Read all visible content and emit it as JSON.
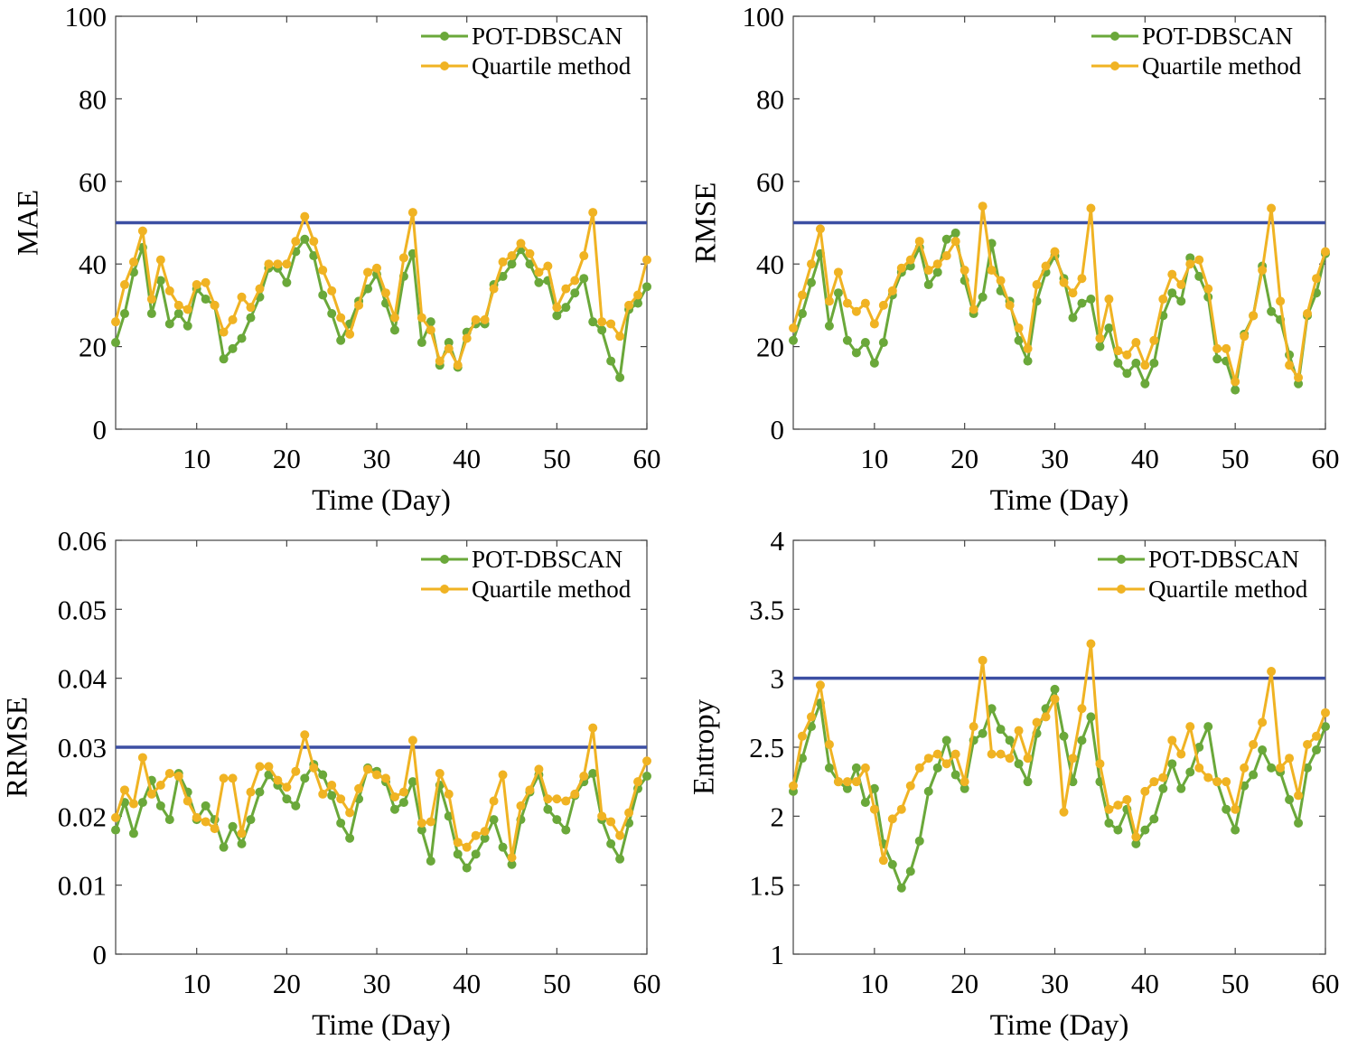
{
  "chart_data": [
    {
      "type": "line",
      "id": "mae",
      "ylabel": "MAE",
      "xlabel": "Time (Day)",
      "xlim": [
        1,
        60
      ],
      "ylim": [
        0,
        100
      ],
      "xticks": [
        10,
        20,
        30,
        40,
        50,
        60
      ],
      "yticks": [
        0,
        20,
        40,
        60,
        80,
        100
      ],
      "ytick_labels": [
        "0",
        "20",
        "40",
        "60",
        "80",
        "100"
      ],
      "threshold": 50,
      "legend": "top-right",
      "x": [
        1,
        2,
        3,
        4,
        5,
        6,
        7,
        8,
        9,
        10,
        11,
        12,
        13,
        14,
        15,
        16,
        17,
        18,
        19,
        20,
        21,
        22,
        23,
        24,
        25,
        26,
        27,
        28,
        29,
        30,
        31,
        32,
        33,
        34,
        35,
        36,
        37,
        38,
        39,
        40,
        41,
        42,
        43,
        44,
        45,
        46,
        47,
        48,
        49,
        50,
        51,
        52,
        53,
        54,
        55,
        56,
        57,
        58,
        59,
        60
      ],
      "series": [
        {
          "name": "POT-DBSCAN",
          "color": "#6aa83a",
          "values": [
            21,
            28,
            38,
            44,
            28,
            36,
            25.5,
            28,
            25,
            34,
            31.5,
            30,
            17,
            19.5,
            22,
            27,
            32,
            39,
            39,
            35.5,
            43,
            46,
            42,
            32.5,
            28,
            21.5,
            25.5,
            31,
            34,
            37.5,
            30.5,
            24,
            37,
            42.5,
            21,
            26,
            15.5,
            21,
            15,
            23.5,
            25.5,
            25.5,
            35,
            37,
            40,
            43.5,
            40,
            35.5,
            36,
            27.5,
            29.5,
            33,
            36.5,
            26,
            24,
            16.5,
            12.5,
            29,
            30.5,
            34.5
          ]
        },
        {
          "name": "Quartile method",
          "color": "#f0b323",
          "values": [
            26,
            35,
            40.5,
            48,
            31.5,
            41,
            33.5,
            30,
            29,
            35,
            35.5,
            30,
            23.5,
            26.5,
            32,
            29.5,
            34,
            40,
            40,
            40,
            45.5,
            51.5,
            45.5,
            38.5,
            33.5,
            27,
            23,
            30,
            38,
            39,
            33,
            27,
            41.5,
            52.5,
            27,
            24,
            16.5,
            19.5,
            15.5,
            22,
            26.5,
            26.5,
            34,
            40.5,
            42,
            45,
            42.5,
            38,
            39.5,
            29.5,
            34,
            36,
            42,
            52.5,
            26,
            25.5,
            22.5,
            30,
            32.5,
            41
          ]
        }
      ]
    },
    {
      "type": "line",
      "id": "rmse",
      "ylabel": "RMSE",
      "xlabel": "Time (Day)",
      "xlim": [
        1,
        60
      ],
      "ylim": [
        0,
        100
      ],
      "xticks": [
        10,
        20,
        30,
        40,
        50,
        60
      ],
      "yticks": [
        0,
        20,
        40,
        60,
        80,
        100
      ],
      "ytick_labels": [
        "0",
        "20",
        "40",
        "60",
        "80",
        "100"
      ],
      "threshold": 50,
      "legend": "top-right",
      "x": [
        1,
        2,
        3,
        4,
        5,
        6,
        7,
        8,
        9,
        10,
        11,
        12,
        13,
        14,
        15,
        16,
        17,
        18,
        19,
        20,
        21,
        22,
        23,
        24,
        25,
        26,
        27,
        28,
        29,
        30,
        31,
        32,
        33,
        34,
        35,
        36,
        37,
        38,
        39,
        40,
        41,
        42,
        43,
        44,
        45,
        46,
        47,
        48,
        49,
        50,
        51,
        52,
        53,
        54,
        55,
        56,
        57,
        58,
        59,
        60
      ],
      "series": [
        {
          "name": "POT-DBSCAN",
          "color": "#6aa83a",
          "values": [
            21.5,
            28,
            35.5,
            42.5,
            25,
            33,
            21.5,
            18.5,
            21,
            16,
            21,
            32.5,
            38,
            39.5,
            44,
            35,
            38,
            46,
            47.5,
            36,
            28,
            32,
            45,
            33.5,
            31,
            21.5,
            16.5,
            31,
            38,
            42,
            36.5,
            27,
            30.5,
            31.5,
            20,
            24.5,
            16,
            13.5,
            16,
            11,
            16,
            27.5,
            33,
            31,
            41.5,
            37,
            32,
            17,
            16.5,
            9.5,
            23,
            27.5,
            39.5,
            28.5,
            26.5,
            18,
            11,
            27.5,
            33,
            42.5
          ]
        },
        {
          "name": "Quartile method",
          "color": "#f0b323",
          "values": [
            24.5,
            32.5,
            40,
            48.5,
            31,
            38,
            30.5,
            28.5,
            30.5,
            25.5,
            30,
            33.5,
            39,
            41,
            45.5,
            38.5,
            40,
            42,
            45.5,
            38.5,
            29,
            54,
            38.5,
            36,
            30,
            24.5,
            19.5,
            35,
            39.5,
            43,
            35.5,
            33,
            36.5,
            53.5,
            22,
            31.5,
            19,
            18,
            21,
            15.5,
            21.5,
            31.5,
            37.5,
            35,
            40,
            41,
            34,
            19.5,
            19.5,
            11.5,
            22.5,
            27.5,
            38.5,
            53.5,
            31,
            15.5,
            12.5,
            28,
            36.5,
            43
          ]
        }
      ]
    },
    {
      "type": "line",
      "id": "rrmse",
      "ylabel": "RRMSE",
      "xlabel": "Time (Day)",
      "xlim": [
        1,
        60
      ],
      "ylim": [
        0,
        0.06
      ],
      "xticks": [
        10,
        20,
        30,
        40,
        50,
        60
      ],
      "yticks": [
        0,
        0.01,
        0.02,
        0.03,
        0.04,
        0.05,
        0.06
      ],
      "ytick_labels": [
        "0",
        "0.01",
        "0.02",
        "0.03",
        "0.04",
        "0.05",
        "0.06"
      ],
      "threshold": 0.03,
      "legend": "top-right",
      "x": [
        1,
        2,
        3,
        4,
        5,
        6,
        7,
        8,
        9,
        10,
        11,
        12,
        13,
        14,
        15,
        16,
        17,
        18,
        19,
        20,
        21,
        22,
        23,
        24,
        25,
        26,
        27,
        28,
        29,
        30,
        31,
        32,
        33,
        34,
        35,
        36,
        37,
        38,
        39,
        40,
        41,
        42,
        43,
        44,
        45,
        46,
        47,
        48,
        49,
        50,
        51,
        52,
        53,
        54,
        55,
        56,
        57,
        58,
        59,
        60
      ],
      "series": [
        {
          "name": "POT-DBSCAN",
          "color": "#6aa83a",
          "values": [
            0.018,
            0.022,
            0.0175,
            0.022,
            0.0252,
            0.0215,
            0.0195,
            0.0262,
            0.0235,
            0.0195,
            0.0215,
            0.0195,
            0.0155,
            0.0185,
            0.016,
            0.0195,
            0.0235,
            0.026,
            0.0245,
            0.0225,
            0.0215,
            0.0255,
            0.0275,
            0.026,
            0.023,
            0.019,
            0.0168,
            0.0225,
            0.027,
            0.0265,
            0.025,
            0.021,
            0.022,
            0.025,
            0.018,
            0.0135,
            0.0245,
            0.02,
            0.0145,
            0.0125,
            0.0145,
            0.0168,
            0.0195,
            0.0155,
            0.013,
            0.0195,
            0.0235,
            0.026,
            0.021,
            0.0195,
            0.018,
            0.023,
            0.025,
            0.0262,
            0.0195,
            0.016,
            0.0138,
            0.019,
            0.024,
            0.0258
          ]
        },
        {
          "name": "Quartile method",
          "color": "#f0b323",
          "values": [
            0.0198,
            0.0238,
            0.0218,
            0.0285,
            0.0232,
            0.0245,
            0.0262,
            0.0258,
            0.0222,
            0.0198,
            0.0192,
            0.0182,
            0.0255,
            0.0255,
            0.0175,
            0.0235,
            0.0272,
            0.0272,
            0.0252,
            0.0242,
            0.0265,
            0.0318,
            0.027,
            0.0232,
            0.0245,
            0.0225,
            0.0205,
            0.024,
            0.0268,
            0.026,
            0.0255,
            0.0228,
            0.0235,
            0.031,
            0.019,
            0.0192,
            0.0262,
            0.0232,
            0.0162,
            0.0155,
            0.0172,
            0.0178,
            0.0222,
            0.026,
            0.014,
            0.0215,
            0.0238,
            0.0268,
            0.0225,
            0.0225,
            0.0222,
            0.0232,
            0.0258,
            0.0328,
            0.02,
            0.0192,
            0.0172,
            0.0205,
            0.025,
            0.028
          ]
        }
      ]
    },
    {
      "type": "line",
      "id": "entropy",
      "ylabel": "Entropy",
      "xlabel": "Time (Day)",
      "xlim": [
        1,
        60
      ],
      "ylim": [
        1,
        4
      ],
      "xticks": [
        10,
        20,
        30,
        40,
        50,
        60
      ],
      "yticks": [
        1,
        1.5,
        2,
        2.5,
        3,
        3.5,
        4
      ],
      "ytick_labels": [
        "1",
        "1.5",
        "2",
        "2.5",
        "3",
        "3.5",
        "4"
      ],
      "threshold": 3,
      "legend": "top-right",
      "x": [
        1,
        2,
        3,
        4,
        5,
        6,
        7,
        8,
        9,
        10,
        11,
        12,
        13,
        14,
        15,
        16,
        17,
        18,
        19,
        20,
        21,
        22,
        23,
        24,
        25,
        26,
        27,
        28,
        29,
        30,
        31,
        32,
        33,
        34,
        35,
        36,
        37,
        38,
        39,
        40,
        41,
        42,
        43,
        44,
        45,
        46,
        47,
        48,
        49,
        50,
        51,
        52,
        53,
        54,
        55,
        56,
        57,
        58,
        59,
        60
      ],
      "series": [
        {
          "name": "POT-DBSCAN",
          "color": "#6aa83a",
          "values": [
            2.18,
            2.42,
            2.65,
            2.82,
            2.35,
            2.25,
            2.2,
            2.35,
            2.1,
            2.2,
            1.8,
            1.65,
            1.48,
            1.6,
            1.82,
            2.18,
            2.35,
            2.55,
            2.3,
            2.2,
            2.55,
            2.6,
            2.78,
            2.63,
            2.55,
            2.38,
            2.25,
            2.6,
            2.78,
            2.92,
            2.58,
            2.25,
            2.55,
            2.72,
            2.25,
            1.95,
            1.9,
            2.05,
            1.8,
            1.9,
            1.98,
            2.2,
            2.38,
            2.2,
            2.32,
            2.5,
            2.65,
            2.25,
            2.05,
            1.9,
            2.22,
            2.3,
            2.48,
            2.35,
            2.32,
            2.12,
            1.95,
            2.35,
            2.48,
            2.65
          ]
        },
        {
          "name": "Quartile method",
          "color": "#f0b323",
          "values": [
            2.22,
            2.58,
            2.72,
            2.95,
            2.52,
            2.25,
            2.25,
            2.25,
            2.35,
            2.05,
            1.68,
            1.98,
            2.05,
            2.22,
            2.35,
            2.42,
            2.45,
            2.38,
            2.45,
            2.25,
            2.65,
            3.13,
            2.45,
            2.45,
            2.42,
            2.62,
            2.42,
            2.68,
            2.72,
            2.85,
            2.03,
            2.42,
            2.78,
            3.25,
            2.38,
            2.05,
            2.08,
            2.12,
            1.85,
            2.18,
            2.25,
            2.28,
            2.55,
            2.45,
            2.65,
            2.35,
            2.28,
            2.25,
            2.25,
            2.05,
            2.35,
            2.52,
            2.68,
            3.05,
            2.35,
            2.42,
            2.15,
            2.52,
            2.58,
            2.75
          ]
        }
      ]
    }
  ],
  "colors": {
    "threshold_line": "#3c4fa3",
    "axis": "#444444",
    "text": "#000000"
  }
}
